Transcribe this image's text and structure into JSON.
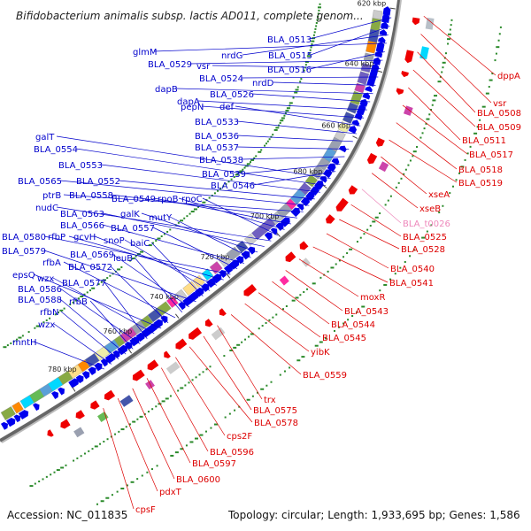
{
  "header": {
    "title": "Bifidobacterium animalis subsp. lactis AD011, complete genom..."
  },
  "footer": {
    "accession": "Accession: NC_011835",
    "summary": "Topology: circular; Length: 1,933,695 bp; Genes: 1,586"
  },
  "ruler": {
    "ticks": [
      "620 kbp",
      "640 kbp",
      "660 kbp",
      "680 kbp",
      "700 kbp",
      "720 kbp",
      "740 kbp",
      "760 kbp",
      "780 kbp"
    ]
  },
  "colors": {
    "forward": "#0000ee",
    "reverse": "#ee0000",
    "rna": "#ee88bb",
    "backbone": "#666666"
  },
  "forward_genes": [
    "BLA_0513",
    "BLA_0515",
    "nrdG",
    "glmM",
    "BLA_0516",
    "BLA_0529",
    "vsr",
    "BLA_0524",
    "nrdD",
    "dapB",
    "BLA_0526",
    "dapA",
    "pepN",
    "def",
    "BLA_0533",
    "BLA_0536",
    "BLA_0537",
    "BLA_0538",
    "BLA_0539",
    "BLA_0546",
    "galT",
    "BLA_0554",
    "BLA_0553",
    "BLA_0552",
    "BLA_0565",
    "ptrB",
    "BLA_0558",
    "BLA_0549",
    "rpoB",
    "rpoC",
    "nudC",
    "BLA_0563",
    "galK",
    "mutY",
    "BLA_0566",
    "BLA_0557",
    "BLA_0580",
    "rfbP",
    "gcvH",
    "snoP",
    "baiC",
    "BLA_0579",
    "BLA_0569",
    "leuB",
    "rfbA",
    "BLA_0572",
    "epsQ",
    "wzx",
    "BLA_0577",
    "BLA_0586",
    "rfbB",
    "BLA_0588",
    "rfbN",
    "wzx",
    "mntH"
  ],
  "reverse_genes": [
    "dppA",
    "vsr",
    "BLA_0508",
    "BLA_0509",
    "BLA_0511",
    "BLA_0517",
    "BLA_0518",
    "BLA_0519",
    "xseA",
    "xseB",
    "BLA_t0026",
    "BLA_0525",
    "BLA_0528",
    "BLA_0540",
    "BLA_0541",
    "moxR",
    "BLA_0543",
    "BLA_0544",
    "BLA_0545",
    "yibK",
    "BLA_0559",
    "trx",
    "BLA_0575",
    "BLA_0578",
    "cps2F",
    "BLA_0596",
    "BLA_0597",
    "BLA_0600",
    "pdxT",
    "cpsF"
  ]
}
